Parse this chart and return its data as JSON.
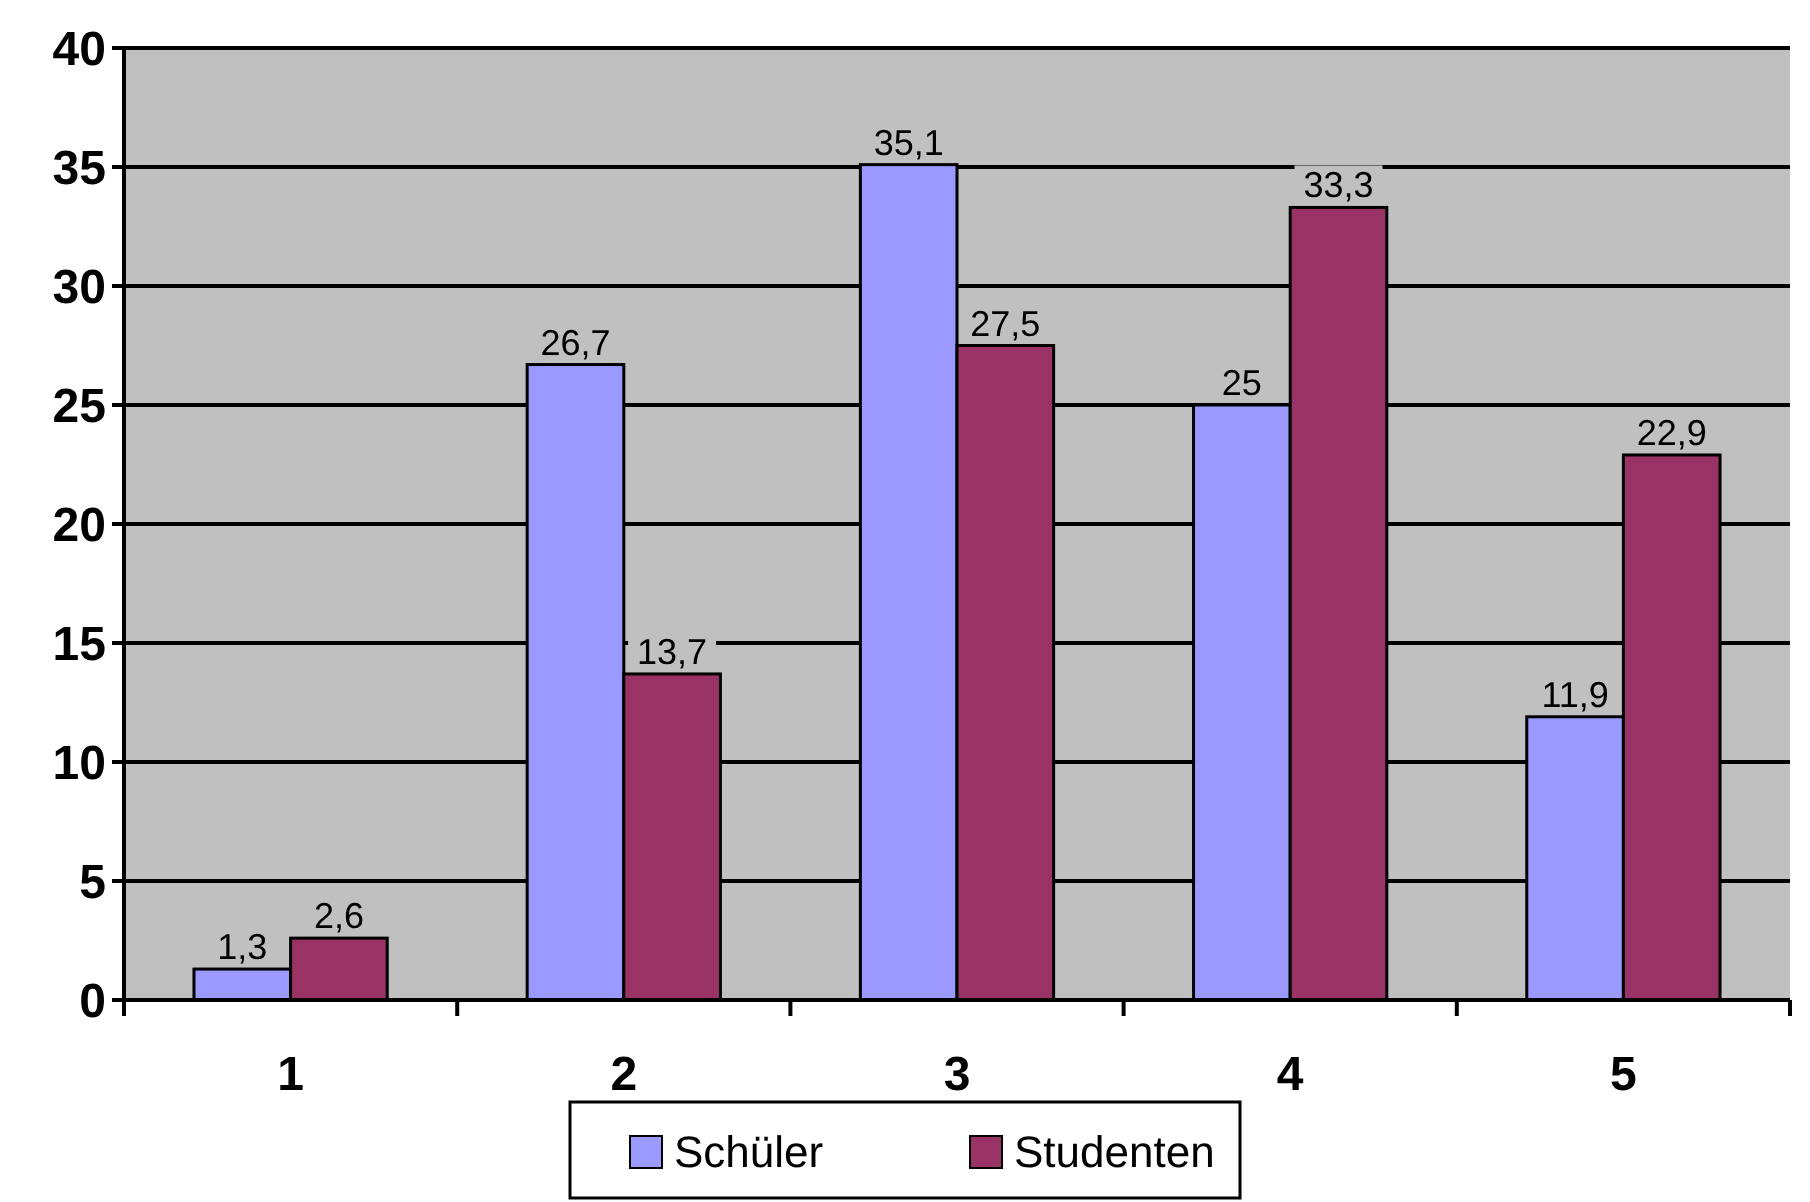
{
  "chart_data": {
    "type": "bar",
    "categories": [
      "1",
      "2",
      "3",
      "4",
      "5"
    ],
    "series": [
      {
        "name": "Schüler",
        "color": "#9999ff",
        "values": [
          1.3,
          26.7,
          35.1,
          25,
          11.9
        ],
        "value_labels": [
          "1,3",
          "26,7",
          "35,1",
          "25",
          "11,9"
        ]
      },
      {
        "name": "Studenten",
        "color": "#993366",
        "values": [
          2.6,
          13.7,
          27.5,
          33.3,
          22.9
        ],
        "value_labels": [
          "2,6",
          "13,7",
          "27,5",
          "33,3",
          "22,9"
        ]
      }
    ],
    "ylim": [
      0,
      40
    ],
    "yticks": [
      0,
      5,
      10,
      15,
      20,
      25,
      30,
      35,
      40
    ],
    "grid": "y",
    "legend": "bottom"
  }
}
